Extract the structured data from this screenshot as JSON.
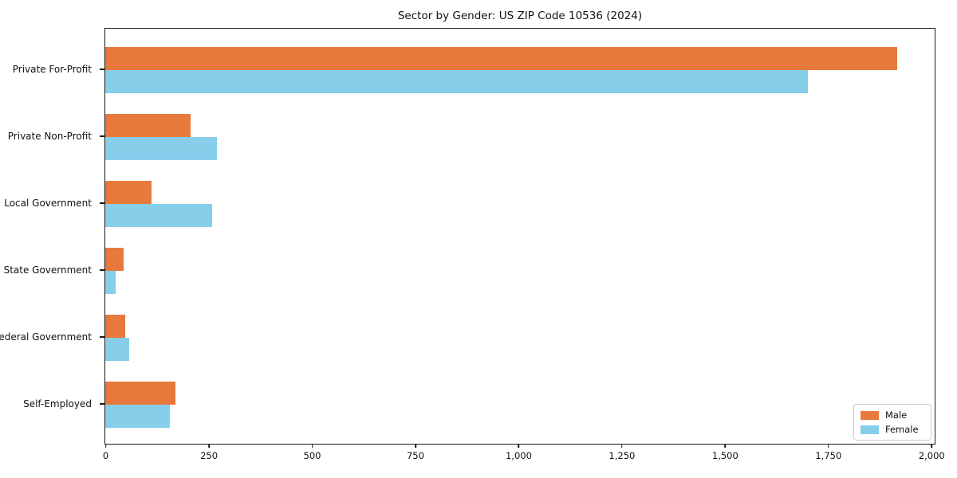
{
  "title": "Sector by Gender: US ZIP Code 10536 (2024)",
  "legend": {
    "items": [
      {
        "label": "Male",
        "color": "#E8793C"
      },
      {
        "label": "Female",
        "color": "#87CEEB"
      }
    ]
  },
  "chart_data": {
    "type": "bar",
    "orientation": "horizontal",
    "title": "Sector by Gender: US ZIP Code 10536 (2024)",
    "categories": [
      "Private For-Profit",
      "Private Non-Profit",
      "Local Government",
      "State Government",
      "Federal Government",
      "Self-Employed"
    ],
    "series": [
      {
        "name": "Male",
        "color": "#E8793C",
        "values": [
          1915,
          207,
          111,
          45,
          49,
          170
        ]
      },
      {
        "name": "Female",
        "color": "#87CEEB",
        "values": [
          1700,
          270,
          259,
          26,
          58,
          156
        ]
      }
    ],
    "xlabel": "",
    "ylabel": "",
    "xlim": [
      0,
      2000
    ],
    "x_ticks": [
      0,
      250,
      500,
      750,
      1000,
      1250,
      1500,
      1750,
      2000
    ],
    "x_tick_labels": [
      "0",
      "250",
      "500",
      "750",
      "1,000",
      "1,250",
      "1,500",
      "1,750",
      "2,000"
    ],
    "grid": false,
    "legend_position": "lower right"
  }
}
